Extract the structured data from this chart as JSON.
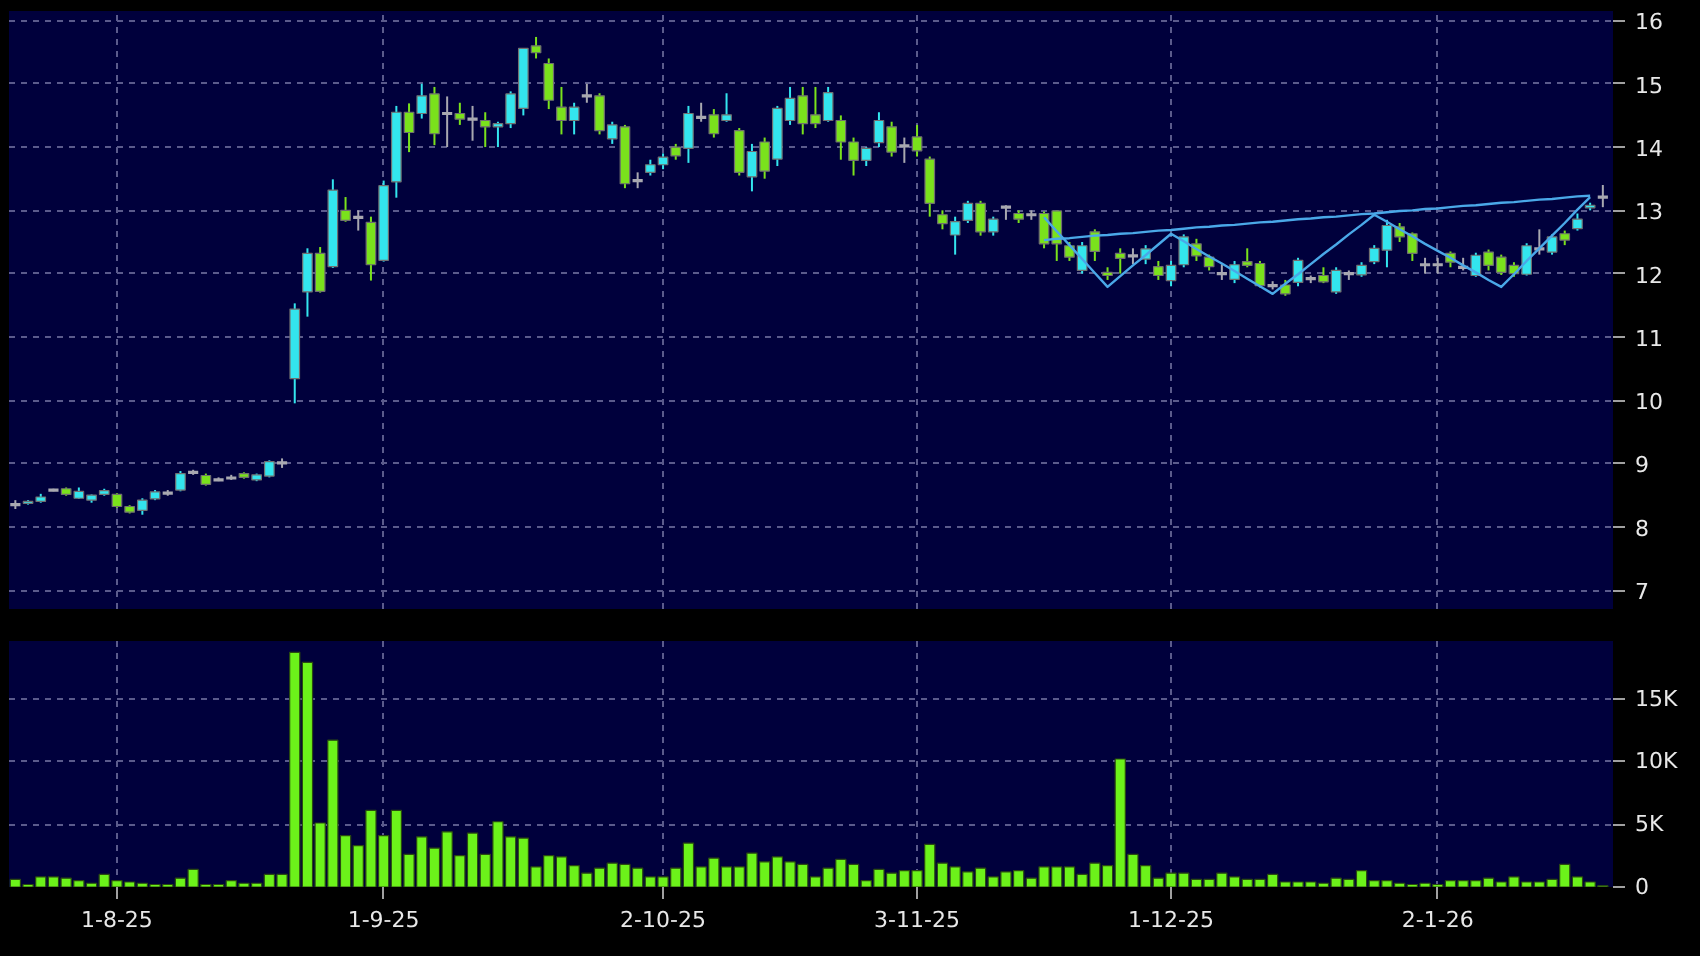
{
  "chart_data": [
    {
      "type": "candlestick",
      "categories": [
        null,
        null,
        null,
        null,
        null,
        null,
        null,
        null,
        null,
        null,
        null,
        null,
        null,
        null,
        null,
        null,
        null,
        null,
        null,
        null,
        null,
        null,
        null,
        null,
        null,
        null,
        null,
        null,
        null,
        null,
        null,
        null,
        null,
        null,
        null,
        null,
        null,
        null,
        null,
        null,
        null,
        null,
        null,
        null,
        null,
        null,
        null,
        null,
        null,
        null,
        null,
        null,
        null,
        null,
        null,
        null,
        null,
        null,
        null,
        null,
        null,
        null,
        null,
        null,
        null,
        null,
        null,
        null,
        null,
        null,
        null,
        null,
        null,
        null,
        null,
        null,
        null,
        null,
        null,
        null,
        null,
        null,
        null,
        null,
        null,
        null,
        null,
        null,
        null,
        null,
        null,
        null,
        null,
        null,
        null,
        null,
        null,
        null,
        null,
        null,
        null,
        null,
        null,
        null,
        null,
        null,
        null,
        null,
        null,
        null,
        null,
        null,
        null,
        null,
        null,
        null,
        null,
        null,
        null,
        null,
        null,
        null,
        null,
        null,
        null,
        null
      ],
      "ohlc": [
        [
          8.35,
          8.42,
          8.28,
          8.35
        ],
        [
          8.37,
          8.42,
          8.35,
          8.4
        ],
        [
          8.4,
          8.52,
          8.38,
          8.47
        ],
        [
          8.58,
          8.6,
          8.56,
          8.58
        ],
        [
          8.6,
          8.62,
          8.49,
          8.51
        ],
        [
          8.45,
          8.62,
          8.44,
          8.56
        ],
        [
          8.42,
          8.51,
          8.38,
          8.5
        ],
        [
          8.51,
          8.6,
          8.49,
          8.57
        ],
        [
          8.51,
          8.53,
          8.3,
          8.32
        ],
        [
          8.32,
          8.34,
          8.21,
          8.23
        ],
        [
          8.26,
          8.45,
          8.19,
          8.42
        ],
        [
          8.44,
          8.58,
          8.42,
          8.55
        ],
        [
          8.53,
          8.58,
          8.49,
          8.53
        ],
        [
          8.58,
          8.88,
          8.56,
          8.84
        ],
        [
          8.86,
          8.9,
          8.82,
          8.86
        ],
        [
          8.81,
          8.84,
          8.65,
          8.67
        ],
        [
          8.74,
          8.78,
          8.72,
          8.74
        ],
        [
          8.77,
          8.82,
          8.74,
          8.77
        ],
        [
          8.84,
          8.86,
          8.76,
          8.78
        ],
        [
          8.74,
          8.84,
          8.72,
          8.82
        ],
        [
          8.8,
          9.05,
          8.78,
          9.03
        ],
        [
          9.01,
          9.08,
          8.93,
          9.01
        ],
        [
          10.34,
          11.53,
          9.95,
          11.44
        ],
        [
          11.71,
          12.4,
          11.32,
          12.32
        ],
        [
          12.32,
          12.42,
          11.7,
          11.72
        ],
        [
          12.11,
          13.49,
          12.09,
          13.32
        ],
        [
          13.0,
          13.21,
          12.82,
          12.84
        ],
        [
          12.89,
          13.0,
          12.68,
          12.89
        ],
        [
          12.81,
          12.9,
          11.89,
          12.14
        ],
        [
          12.21,
          13.47,
          12.19,
          13.39
        ],
        [
          13.45,
          14.65,
          13.2,
          14.55
        ],
        [
          14.55,
          14.69,
          13.92,
          14.23
        ],
        [
          14.53,
          15.0,
          14.45,
          14.81
        ],
        [
          14.84,
          14.95,
          14.03,
          14.21
        ],
        [
          14.53,
          14.8,
          14.0,
          14.53
        ],
        [
          14.53,
          14.7,
          14.35,
          14.44
        ],
        [
          14.44,
          14.65,
          14.1,
          14.44
        ],
        [
          14.42,
          14.55,
          14.0,
          14.32
        ],
        [
          14.32,
          14.4,
          14.0,
          14.37
        ],
        [
          14.37,
          14.88,
          14.3,
          14.84
        ],
        [
          14.61,
          15.56,
          14.5,
          15.56
        ],
        [
          15.6,
          15.74,
          15.4,
          15.49
        ],
        [
          15.32,
          15.4,
          14.6,
          14.74
        ],
        [
          14.63,
          14.95,
          14.2,
          14.42
        ],
        [
          14.42,
          14.7,
          14.2,
          14.63
        ],
        [
          14.81,
          15.0,
          14.7,
          14.81
        ],
        [
          14.81,
          14.85,
          14.2,
          14.26
        ],
        [
          14.13,
          14.4,
          14.05,
          14.35
        ],
        [
          14.32,
          14.35,
          13.35,
          13.42
        ],
        [
          13.47,
          13.6,
          13.35,
          13.47
        ],
        [
          13.6,
          13.8,
          13.55,
          13.72
        ],
        [
          13.72,
          13.9,
          13.65,
          13.84
        ],
        [
          14.0,
          14.05,
          13.8,
          13.86
        ],
        [
          13.98,
          14.65,
          13.75,
          14.53
        ],
        [
          14.47,
          14.7,
          14.4,
          14.47
        ],
        [
          14.51,
          14.6,
          14.15,
          14.21
        ],
        [
          14.42,
          14.85,
          14.4,
          14.51
        ],
        [
          14.26,
          14.3,
          13.55,
          13.6
        ],
        [
          13.53,
          14.05,
          13.3,
          13.93
        ],
        [
          14.08,
          14.15,
          13.5,
          13.62
        ],
        [
          13.81,
          14.65,
          13.7,
          14.61
        ],
        [
          14.42,
          14.95,
          14.35,
          14.77
        ],
        [
          14.81,
          14.95,
          14.2,
          14.37
        ],
        [
          14.51,
          14.95,
          14.3,
          14.37
        ],
        [
          14.42,
          14.95,
          14.4,
          14.86
        ],
        [
          14.42,
          14.5,
          13.8,
          14.08
        ],
        [
          14.08,
          14.15,
          13.55,
          13.79
        ],
        [
          13.79,
          14.0,
          13.7,
          13.98
        ],
        [
          14.07,
          14.55,
          14.0,
          14.42
        ],
        [
          14.32,
          14.4,
          13.85,
          13.92
        ],
        [
          14.02,
          14.15,
          13.75,
          14.02
        ],
        [
          14.16,
          14.35,
          13.85,
          13.94
        ],
        [
          13.81,
          13.85,
          12.9,
          13.11
        ],
        [
          12.93,
          13.0,
          12.7,
          12.79
        ],
        [
          12.61,
          12.9,
          12.3,
          12.82
        ],
        [
          12.84,
          13.15,
          12.8,
          13.11
        ],
        [
          13.11,
          13.15,
          12.6,
          12.66
        ],
        [
          12.66,
          12.9,
          12.6,
          12.86
        ],
        [
          13.05,
          13.08,
          12.85,
          13.05
        ],
        [
          12.95,
          13.0,
          12.8,
          12.86
        ],
        [
          12.93,
          13.0,
          12.85,
          12.93
        ],
        [
          12.95,
          12.98,
          12.4,
          12.47
        ],
        [
          12.99,
          13.0,
          12.2,
          12.47
        ],
        [
          12.44,
          12.5,
          12.2,
          12.26
        ],
        [
          12.05,
          12.5,
          12.0,
          12.44
        ],
        [
          12.66,
          12.7,
          12.2,
          12.35
        ],
        [
          12.02,
          12.1,
          11.9,
          11.97
        ],
        [
          12.32,
          12.4,
          12.0,
          12.24
        ],
        [
          12.28,
          12.4,
          12.15,
          12.28
        ],
        [
          12.23,
          12.45,
          12.15,
          12.39
        ],
        [
          12.11,
          12.2,
          11.9,
          11.97
        ],
        [
          11.89,
          12.2,
          11.8,
          12.13
        ],
        [
          12.14,
          12.62,
          12.1,
          12.58
        ],
        [
          12.47,
          12.55,
          12.2,
          12.28
        ],
        [
          12.26,
          12.3,
          12.05,
          12.11
        ],
        [
          12.0,
          12.15,
          11.9,
          12.0
        ],
        [
          11.91,
          12.2,
          11.85,
          12.14
        ],
        [
          12.19,
          12.4,
          12.1,
          12.13
        ],
        [
          12.16,
          12.2,
          11.78,
          11.81
        ],
        [
          11.81,
          11.88,
          11.75,
          11.81
        ],
        [
          11.82,
          11.9,
          11.65,
          11.68
        ],
        [
          11.86,
          12.25,
          11.8,
          12.21
        ],
        [
          11.92,
          11.97,
          11.85,
          11.92
        ],
        [
          11.97,
          12.1,
          11.85,
          11.87
        ],
        [
          11.71,
          12.1,
          11.68,
          12.05
        ],
        [
          12.0,
          12.05,
          11.9,
          12.0
        ],
        [
          11.98,
          12.18,
          11.95,
          12.13
        ],
        [
          12.19,
          12.45,
          12.15,
          12.4
        ],
        [
          12.37,
          12.85,
          12.1,
          12.76
        ],
        [
          12.74,
          12.8,
          12.5,
          12.58
        ],
        [
          12.63,
          12.65,
          12.2,
          12.32
        ],
        [
          12.14,
          12.25,
          12.0,
          12.14
        ],
        [
          12.14,
          12.25,
          12.0,
          12.14
        ],
        [
          12.32,
          12.35,
          12.1,
          12.18
        ],
        [
          12.1,
          12.25,
          12.05,
          12.1
        ],
        [
          11.97,
          12.33,
          11.95,
          12.29
        ],
        [
          12.34,
          12.38,
          12.05,
          12.13
        ],
        [
          12.26,
          12.3,
          11.98,
          12.02
        ],
        [
          12.13,
          12.18,
          11.95,
          12.0
        ],
        [
          11.99,
          12.48,
          11.97,
          12.44
        ],
        [
          12.39,
          12.7,
          12.3,
          12.39
        ],
        [
          12.34,
          12.62,
          12.3,
          12.58
        ],
        [
          12.63,
          12.68,
          12.45,
          12.53
        ],
        [
          12.71,
          12.95,
          12.68,
          12.86
        ],
        [
          13.04,
          13.12,
          13.0,
          13.08
        ],
        [
          13.21,
          13.4,
          13.05,
          13.21
        ]
      ],
      "colors": [
        "#a8a8b0",
        "#33e5ee",
        "#33e5ee",
        "#a8a8b0",
        "#7ae21c",
        "#33e5ee",
        "#33e5ee",
        "#33e5ee",
        "#7ae21c",
        "#7ae21c",
        "#33e5ee",
        "#33e5ee",
        "#a8a8b0",
        "#33e5ee",
        "#a8a8b0",
        "#7ae21c",
        "#a8a8b0",
        "#a8a8b0",
        "#7ae21c",
        "#33e5ee",
        "#33e5ee",
        "#a8a8b0",
        "#33e5ee",
        "#33e5ee",
        "#7ae21c",
        "#33e5ee",
        "#7ae21c",
        "#a8a8b0",
        "#7ae21c",
        "#33e5ee",
        "#33e5ee",
        "#7ae21c",
        "#33e5ee",
        "#7ae21c",
        "#a8a8b0",
        "#7ae21c",
        "#a8a8b0",
        "#7ae21c",
        "#33e5ee",
        "#33e5ee",
        "#33e5ee",
        "#7ae21c",
        "#7ae21c",
        "#7ae21c",
        "#33e5ee",
        "#a8a8b0",
        "#7ae21c",
        "#33e5ee",
        "#7ae21c",
        "#a8a8b0",
        "#33e5ee",
        "#33e5ee",
        "#7ae21c",
        "#33e5ee",
        "#a8a8b0",
        "#7ae21c",
        "#33e5ee",
        "#7ae21c",
        "#33e5ee",
        "#7ae21c",
        "#33e5ee",
        "#33e5ee",
        "#7ae21c",
        "#7ae21c",
        "#33e5ee",
        "#7ae21c",
        "#7ae21c",
        "#33e5ee",
        "#33e5ee",
        "#7ae21c",
        "#a8a8b0",
        "#7ae21c",
        "#7ae21c",
        "#7ae21c",
        "#33e5ee",
        "#33e5ee",
        "#7ae21c",
        "#33e5ee",
        "#a8a8b0",
        "#7ae21c",
        "#a8a8b0",
        "#7ae21c",
        "#7ae21c",
        "#7ae21c",
        "#33e5ee",
        "#7ae21c",
        "#7ae21c",
        "#7ae21c",
        "#a8a8b0",
        "#33e5ee",
        "#7ae21c",
        "#33e5ee",
        "#33e5ee",
        "#7ae21c",
        "#7ae21c",
        "#a8a8b0",
        "#33e5ee",
        "#7ae21c",
        "#7ae21c",
        "#a8a8b0",
        "#7ae21c",
        "#33e5ee",
        "#a8a8b0",
        "#7ae21c",
        "#33e5ee",
        "#a8a8b0",
        "#33e5ee",
        "#33e5ee",
        "#33e5ee",
        "#7ae21c",
        "#7ae21c",
        "#a8a8b0",
        "#a8a8b0",
        "#7ae21c",
        "#a8a8b0",
        "#33e5ee",
        "#7ae21c",
        "#7ae21c",
        "#7ae21c",
        "#33e5ee",
        "#a8a8b0",
        "#33e5ee",
        "#7ae21c",
        "#33e5ee",
        "#33e5ee",
        "#a8a8b0"
      ],
      "series": [
        {
          "type": "line",
          "color": "#4aa8e8",
          "values": [
            null,
            null,
            null,
            null,
            null,
            null,
            null,
            null,
            null,
            null,
            null,
            null,
            null,
            null,
            null,
            null,
            null,
            null,
            null,
            null,
            null,
            null,
            null,
            null,
            null,
            null,
            null,
            null,
            null,
            null,
            null,
            null,
            null,
            null,
            null,
            null,
            null,
            null,
            null,
            null,
            null,
            null,
            null,
            null,
            null,
            null,
            null,
            null,
            null,
            null,
            null,
            null,
            null,
            null,
            null,
            null,
            null,
            null,
            null,
            null,
            null,
            null,
            null,
            null,
            null,
            null,
            null,
            null,
            null,
            null,
            null,
            null,
            null,
            null,
            null,
            null,
            null,
            null,
            null,
            null,
            null,
            12.89,
            12.67,
            12.45,
            12.23,
            12.01,
            11.79,
            11.96,
            12.13,
            12.29,
            12.46,
            12.63,
            12.51,
            12.39,
            12.27,
            12.16,
            12.04,
            11.92,
            11.8,
            11.68,
            11.84,
            11.99,
            12.15,
            12.31,
            12.46,
            12.62,
            12.77,
            12.93,
            12.82,
            12.7,
            12.59,
            12.47,
            12.36,
            12.25,
            12.13,
            12.02,
            11.9,
            11.79,
            11.99,
            12.2,
            12.4,
            12.6,
            12.8,
            13.01,
            13.21,
            null
          ]
        },
        {
          "type": "line",
          "color": "#4aa8e8",
          "values": [
            null,
            null,
            null,
            null,
            null,
            null,
            null,
            null,
            null,
            null,
            null,
            null,
            null,
            null,
            null,
            null,
            null,
            null,
            null,
            null,
            null,
            null,
            null,
            null,
            null,
            null,
            null,
            null,
            null,
            null,
            null,
            null,
            null,
            null,
            null,
            null,
            null,
            null,
            null,
            null,
            null,
            null,
            null,
            null,
            null,
            null,
            null,
            null,
            null,
            null,
            null,
            null,
            null,
            null,
            null,
            null,
            null,
            null,
            null,
            null,
            null,
            null,
            null,
            null,
            null,
            null,
            null,
            null,
            null,
            null,
            null,
            null,
            null,
            null,
            null,
            null,
            null,
            null,
            null,
            null,
            null,
            12.53,
            12.55,
            12.56,
            12.58,
            12.6,
            12.61,
            12.63,
            12.64,
            12.66,
            12.68,
            12.69,
            12.71,
            12.73,
            12.74,
            12.76,
            12.77,
            12.79,
            12.81,
            12.82,
            12.84,
            12.86,
            12.87,
            12.89,
            12.9,
            12.92,
            12.94,
            12.95,
            12.97,
            12.99,
            13.0,
            13.02,
            13.03,
            13.05,
            13.07,
            13.08,
            13.1,
            13.12,
            13.13,
            13.15,
            13.17,
            13.18,
            13.2,
            13.22,
            13.23,
            null
          ]
        }
      ],
      "ylim": [
        6.7,
        16.15
      ],
      "yticks": [
        7,
        8,
        9,
        10,
        11,
        12,
        13,
        14,
        15,
        16
      ],
      "grid": true,
      "tick_labels": "y"
    },
    {
      "type": "bar",
      "categories": [
        null,
        null,
        null,
        null,
        null,
        null,
        null,
        null,
        "1-8-25",
        null,
        null,
        null,
        null,
        null,
        null,
        null,
        null,
        null,
        null,
        null,
        null,
        null,
        null,
        null,
        null,
        null,
        null,
        null,
        null,
        "1-9-25",
        null,
        null,
        null,
        null,
        null,
        null,
        null,
        null,
        null,
        null,
        null,
        null,
        null,
        null,
        null,
        null,
        null,
        null,
        null,
        null,
        null,
        "2-10-25",
        null,
        null,
        null,
        null,
        null,
        null,
        null,
        null,
        null,
        null,
        null,
        null,
        null,
        null,
        null,
        null,
        null,
        null,
        null,
        "3-11-25",
        null,
        null,
        null,
        null,
        null,
        null,
        null,
        null,
        null,
        null,
        null,
        null,
        null,
        null,
        null,
        null,
        null,
        null,
        null,
        "1-12-25",
        null,
        null,
        null,
        null,
        null,
        null,
        null,
        null,
        null,
        null,
        null,
        null,
        null,
        null,
        null,
        null,
        null,
        null,
        null,
        null,
        "2-1-26",
        null,
        null,
        null,
        null,
        null,
        null,
        null,
        null,
        null,
        null,
        null,
        null,
        null
      ],
      "values": [
        600,
        200,
        800,
        800,
        700,
        500,
        300,
        1000,
        500,
        400,
        300,
        200,
        200,
        700,
        1400,
        200,
        200,
        500,
        300,
        300,
        1000,
        1000,
        18700,
        17900,
        5100,
        11700,
        4100,
        3300,
        6100,
        4100,
        6100,
        2600,
        4000,
        3100,
        4400,
        2500,
        4300,
        2600,
        5200,
        4000,
        3900,
        1600,
        2500,
        2400,
        1700,
        1100,
        1500,
        1900,
        1800,
        1500,
        800,
        800,
        1500,
        3500,
        1600,
        2300,
        1600,
        1600,
        2700,
        2000,
        2400,
        2000,
        1800,
        800,
        1500,
        2200,
        1800,
        500,
        1400,
        1100,
        1300,
        1300,
        3400,
        1900,
        1600,
        1200,
        1500,
        800,
        1200,
        1300,
        700,
        1600,
        1600,
        1600,
        1000,
        1900,
        1700,
        10200,
        2600,
        1700,
        700,
        1100,
        1100,
        600,
        600,
        1100,
        800,
        600,
        600,
        1000,
        400,
        400,
        400,
        300,
        700,
        600,
        1300,
        500,
        500,
        300,
        200,
        300,
        200,
        500,
        500,
        500,
        700,
        400,
        800,
        400,
        400,
        600,
        1800,
        800,
        400,
        100
      ],
      "color": "#6cf21a",
      "ylim": [
        0,
        19600
      ],
      "yticks": [
        0,
        {
          "value": 5000,
          "label": "5K"
        },
        {
          "value": 10000,
          "label": "10K"
        },
        {
          "value": 15000,
          "label": "15K"
        }
      ],
      "grid": true
    }
  ]
}
